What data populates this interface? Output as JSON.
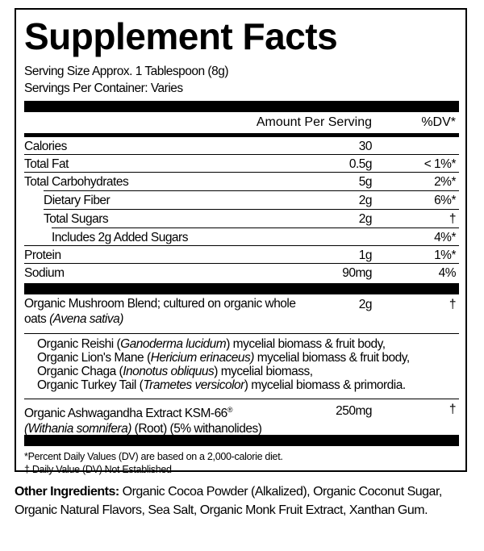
{
  "title": "Supplement Facts",
  "serving_size": "Serving Size Approx. 1 Tablespoon (8g)",
  "servings_per_container": "Servings Per Container: Varies",
  "header": {
    "amount": "Amount Per Serving",
    "dv": "%DV*"
  },
  "nutrients": [
    {
      "name": "Calories",
      "amount": "30",
      "dv": ""
    },
    {
      "name": "Total Fat",
      "amount": "0.5g",
      "dv": "< 1%*"
    },
    {
      "name": "Total Carbohydrates",
      "amount": "5g",
      "dv": "2%*"
    },
    {
      "name": "Dietary Fiber",
      "amount": "2g",
      "dv": "6%*"
    },
    {
      "name": "Total Sugars",
      "amount": "2g",
      "dv": "†"
    },
    {
      "name": "Includes 2g Added Sugars",
      "amount": "",
      "dv": "4%*"
    },
    {
      "name": "Protein",
      "amount": "1g",
      "dv": "1%*"
    },
    {
      "name": "Sodium",
      "amount": "90mg",
      "dv": "4%"
    }
  ],
  "blend": {
    "line1": "Organic Mushroom Blend; cultured on organic whole",
    "line2_plain": "oats ",
    "line2_italic": "(Avena sativa)",
    "amount": "2g",
    "dv": "†",
    "items": [
      {
        "pre": "Organic Reishi (",
        "latin": "Ganoderma lucidum",
        "post": ") mycelial biomass & fruit body,"
      },
      {
        "pre": "Organic Lion's Mane (",
        "latin": "Hericium erinaceus)",
        "post": " mycelial biomass & fruit body,"
      },
      {
        "pre": "Organic Chaga (",
        "latin": "Inonotus obliquus",
        "post": ") mycelial biomass,"
      },
      {
        "pre": "Organic Turkey Tail (",
        "latin": "Trametes versicolor",
        "post": ") mycelial biomass & primordia."
      }
    ]
  },
  "ashwagandha": {
    "line1": "Organic Ashwagandha Extract KSM-66",
    "reg": "®",
    "latin": "(Withania somnifera)",
    "rest": " (Root) (5% withanolides)",
    "amount": "250mg",
    "dv": "†"
  },
  "footnotes": [
    "*Percent Daily Values (DV) are based on a 2,000-calorie diet.",
    "† Daily Value (DV) Not Established"
  ],
  "other": {
    "label": "Other Ingredients:",
    "text": " Organic Cocoa Powder (Alkalized), Organic Coconut Sugar, Organic Natural Flavors, Sea Salt, Organic Monk Fruit Extract, Xanthan Gum."
  }
}
